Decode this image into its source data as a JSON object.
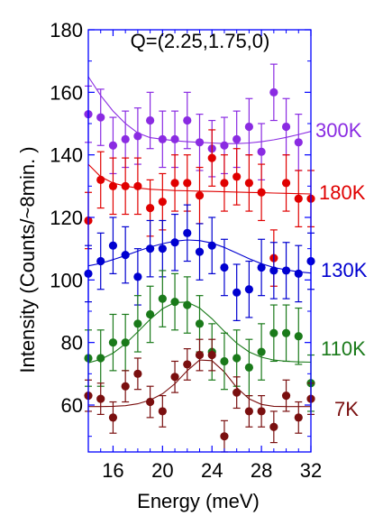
{
  "chart_data": {
    "type": "scatter",
    "title": "",
    "annotation": "Q=(2.25,1.75,0)",
    "xlabel": "Energy (meV)",
    "ylabel": "Intensity (Counts/~8min. )",
    "xlim": [
      14,
      32
    ],
    "ylim": [
      45,
      180
    ],
    "xticks": [
      16,
      20,
      24,
      28,
      32
    ],
    "yticks": [
      60,
      80,
      100,
      120,
      140,
      160,
      180
    ],
    "grid": false,
    "legend": "labels at right of each series",
    "series": [
      {
        "name": "300K",
        "color": "#8a2be2",
        "x": [
          14,
          15,
          16,
          17,
          18,
          19,
          20,
          21,
          22,
          23,
          24,
          25,
          26,
          27,
          28,
          29,
          30,
          31
        ],
        "y": [
          153,
          152,
          143,
          145,
          146,
          151,
          145,
          145,
          151,
          144,
          142,
          143,
          145,
          149,
          141,
          160,
          149,
          144
        ],
        "err": [
          9,
          9,
          9,
          9,
          9,
          9,
          9,
          9,
          9,
          9,
          9,
          9,
          9,
          9,
          9,
          9,
          9,
          9
        ],
        "fit_x": [
          14,
          15,
          16,
          17,
          18,
          19,
          20,
          21,
          22,
          23,
          24,
          25,
          26,
          27,
          28,
          29,
          30,
          31,
          32
        ],
        "fit_y": [
          165,
          159,
          154,
          150,
          147,
          145.5,
          145,
          144.5,
          144.2,
          144,
          143.8,
          143.6,
          143.6,
          143.8,
          144.2,
          144.8,
          145.6,
          146.5,
          147.5
        ]
      },
      {
        "name": "180K",
        "color": "#e00000",
        "x": [
          14,
          15,
          16,
          17,
          18,
          19,
          20,
          21,
          22,
          23,
          24,
          25,
          26,
          27,
          28,
          29,
          30,
          31,
          32
        ],
        "y": [
          119,
          132,
          130,
          130,
          130,
          123,
          125,
          131,
          131,
          127,
          139,
          131,
          133,
          131,
          128,
          107,
          131,
          126,
          126
        ],
        "err": [
          9,
          9,
          9,
          9,
          9,
          9,
          9,
          9,
          9,
          9,
          9,
          9,
          9,
          9,
          9,
          9,
          9,
          9,
          9
        ],
        "fit_x": [
          14,
          15,
          16,
          17,
          18,
          19,
          20,
          21,
          22,
          23,
          24,
          25,
          26,
          27,
          28,
          29,
          30,
          31,
          32
        ],
        "fit_y": [
          137,
          133,
          131,
          130,
          129.4,
          129,
          128.8,
          128.6,
          128.5,
          128.4,
          128.3,
          128.2,
          128.1,
          128,
          127.9,
          127.8,
          127.7,
          127.6,
          127.5
        ]
      },
      {
        "name": "130K",
        "color": "#0000d0",
        "x": [
          14,
          15,
          16,
          17,
          18,
          19,
          20,
          21,
          22,
          23,
          24,
          25,
          26,
          27,
          28,
          29,
          30,
          31,
          32
        ],
        "y": [
          102,
          106,
          111,
          108,
          101,
          110,
          110,
          112,
          115,
          109,
          111,
          104,
          96,
          97,
          104,
          103,
          103,
          102,
          106
        ],
        "err": [
          9,
          9,
          9,
          9,
          9,
          9,
          9,
          9,
          9,
          9,
          9,
          9,
          9,
          9,
          9,
          9,
          9,
          9,
          9
        ],
        "fit_x": [
          14,
          15,
          16,
          17,
          18,
          19,
          20,
          21,
          22,
          23,
          24,
          25,
          26,
          27,
          28,
          29,
          30,
          31,
          32
        ],
        "fit_y": [
          104.5,
          105.3,
          106.5,
          107.8,
          109.2,
          110.5,
          111.6,
          112.4,
          112.8,
          112.6,
          111.8,
          110.4,
          108.6,
          106.8,
          105.2,
          104,
          103.2,
          102.6,
          102.2
        ]
      },
      {
        "name": "110K",
        "color": "#1a7a1a",
        "x": [
          14,
          15,
          16,
          17,
          18,
          19,
          20,
          21,
          22,
          23,
          24,
          25,
          26,
          27,
          28,
          29,
          30,
          31,
          32
        ],
        "y": [
          75,
          75,
          80,
          80,
          86,
          89,
          94,
          93,
          92,
          86,
          77,
          74,
          75,
          72,
          77,
          83,
          83,
          82,
          67
        ],
        "err": [
          9,
          9,
          9,
          9,
          9,
          9,
          9,
          9,
          9,
          9,
          9,
          9,
          9,
          9,
          9,
          9,
          9,
          9,
          9
        ],
        "fit_x": [
          14,
          15,
          16,
          17,
          18,
          19,
          20,
          21,
          22,
          23,
          24,
          25,
          26,
          27,
          28,
          29,
          30,
          31,
          32
        ],
        "fit_y": [
          73.5,
          74.6,
          76.6,
          79.6,
          83.4,
          87.4,
          90.8,
          92.8,
          92.9,
          91,
          87.6,
          83.6,
          79.8,
          77,
          75.3,
          74.4,
          74,
          73.8,
          73.7
        ]
      },
      {
        "name": "7K",
        "color": "#7a0f0f",
        "x": [
          14,
          15,
          16,
          17,
          18,
          19,
          20,
          21,
          22,
          23,
          24,
          25,
          26,
          27,
          28,
          29,
          30,
          31,
          32
        ],
        "y": [
          63,
          62,
          56,
          66,
          70,
          61,
          58,
          69,
          73,
          76,
          76,
          50,
          64,
          58,
          58,
          53,
          63,
          56,
          62
        ],
        "err": [
          5,
          5,
          5,
          5,
          5,
          5,
          5,
          5,
          5,
          5,
          5,
          5,
          5,
          5,
          5,
          5,
          5,
          5,
          5
        ],
        "fit_x": [
          14,
          15,
          16,
          17,
          18,
          19,
          20,
          21,
          22,
          23,
          24,
          25,
          26,
          27,
          28,
          29,
          30,
          31,
          32
        ],
        "fit_y": [
          59.5,
          59.5,
          59.6,
          59.8,
          60.4,
          61.6,
          63.6,
          66.8,
          71,
          74.4,
          74.2,
          70.6,
          65.6,
          62,
          60.2,
          59.6,
          59.5,
          59.5,
          59.5
        ]
      }
    ]
  }
}
